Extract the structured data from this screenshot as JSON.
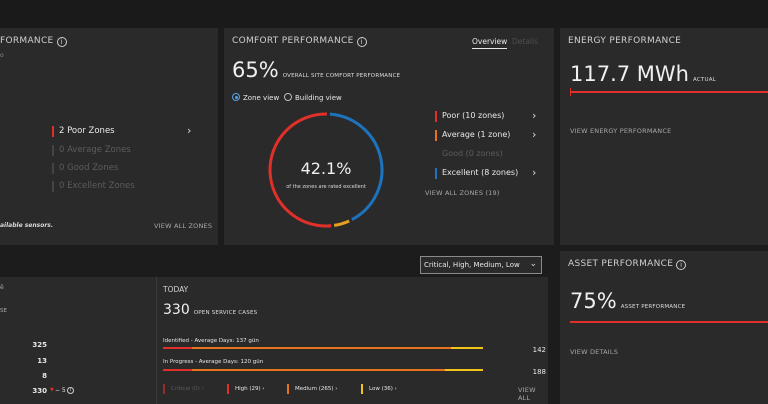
{
  "zones_card": {
    "title": "FORMANCE",
    "line_marker": "o",
    "rows": [
      {
        "label": "2 Poor Zones",
        "color": "#e0302a"
      },
      {
        "label": "0 Average Zones",
        "color": "#4a4a4a"
      },
      {
        "label": "0 Good Zones",
        "color": "#4a4a4a"
      },
      {
        "label": "0 Excellent Zones",
        "color": "#4a4a4a"
      }
    ],
    "footnote": "ailable sensors.",
    "link": "VIEW ALL ZONES"
  },
  "comfort": {
    "title": "COMFORT PERFORMANCE",
    "tab_overview": "Overview",
    "tab_details": "Details",
    "big_value": "65%",
    "big_label": "OVERALL SITE COMFORT PERFORMANCE",
    "radio_zone": "Zone view",
    "radio_building": "Building view",
    "donut_value": "42.1%",
    "donut_caption": "of the zones are rated excellent",
    "donut_segments": [
      {
        "name": "Poor",
        "fraction": 0.526,
        "color": "#e0302a"
      },
      {
        "name": "Average",
        "fraction": 0.053,
        "color": "#e8a020"
      },
      {
        "name": "Good",
        "fraction": 0.0,
        "color": "#5a5a5a"
      },
      {
        "name": "Excellent",
        "fraction": 0.421,
        "color": "#1e73be"
      }
    ],
    "legend": [
      {
        "label": "Poor (10 zones)",
        "color": "#e0302a",
        "dim": false
      },
      {
        "label": "Average (1 zone)",
        "color": "#e8731f",
        "dim": false
      },
      {
        "label": "Good (0 zones)",
        "color": "#2a2a2a",
        "dim": true
      },
      {
        "label": "Excellent (8 zones)",
        "color": "#1e73be",
        "dim": false
      }
    ],
    "link": "VIEW ALL ZONES (19)"
  },
  "energy": {
    "title": "ENERGY PERFORMANCE",
    "value": "117.7 MWh",
    "unit": "ACTUAL",
    "link": "VIEW ENERGY PERFORMANCE"
  },
  "filter": {
    "value": "Critical, High, Medium, Low"
  },
  "service": {
    "partial_header": "ê",
    "partial_label": "SE",
    "left_values": [
      "325",
      "13",
      "8",
      "330"
    ],
    "delta": "− 5",
    "today_label": "TODAY",
    "open_count": "330",
    "open_label": "OPEN SERVICE CASES",
    "rows": [
      {
        "label": "Identified - Average Days: 137 gün",
        "count": "142"
      },
      {
        "label": "In Progress - Average Days: 120 gün",
        "count": "188"
      }
    ],
    "legend": [
      {
        "label": "Critical (0) ›",
        "color": "#e0302a",
        "dim": true
      },
      {
        "label": "High (29) ›",
        "color": "#e0302a",
        "dim": false
      },
      {
        "label": "Medium (265) ›",
        "color": "#e8731f",
        "dim": false
      },
      {
        "label": "Low (36) ›",
        "color": "#f0c419",
        "dim": false
      }
    ],
    "link": "VIEW ALL"
  },
  "asset": {
    "title": "ASSET PERFORMANCE",
    "value": "75%",
    "label": "ASSET PERFORMANCE",
    "progress": 0.75,
    "link": "VIEW DETAILS"
  }
}
